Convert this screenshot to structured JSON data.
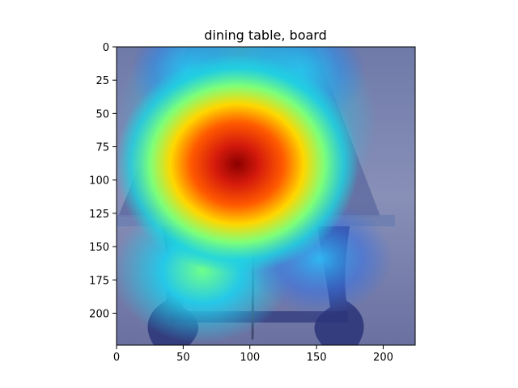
{
  "chart_data": {
    "type": "heatmap",
    "title": "dining table, board",
    "xlabel": "",
    "ylabel": "",
    "xlim": [
      0,
      224
    ],
    "ylim": [
      224,
      0
    ],
    "x_ticks": [
      0,
      50,
      100,
      150,
      200
    ],
    "y_ticks": [
      0,
      25,
      50,
      75,
      100,
      125,
      150,
      175,
      200
    ],
    "grid": false,
    "legend": "none",
    "colormap": "jet",
    "overlay_alpha": 0.5,
    "peak": {
      "x": 90,
      "y": 88,
      "value": 1.0
    },
    "secondary_regions": [
      {
        "x": 60,
        "y": 170,
        "value": 0.55
      },
      {
        "x": 150,
        "y": 160,
        "value": 0.4
      },
      {
        "x": 135,
        "y": 20,
        "value": 0.35
      },
      {
        "x": 55,
        "y": 20,
        "value": 0.35
      }
    ],
    "background_image": "photo of a wooden dining table with turned legs on gravel"
  }
}
